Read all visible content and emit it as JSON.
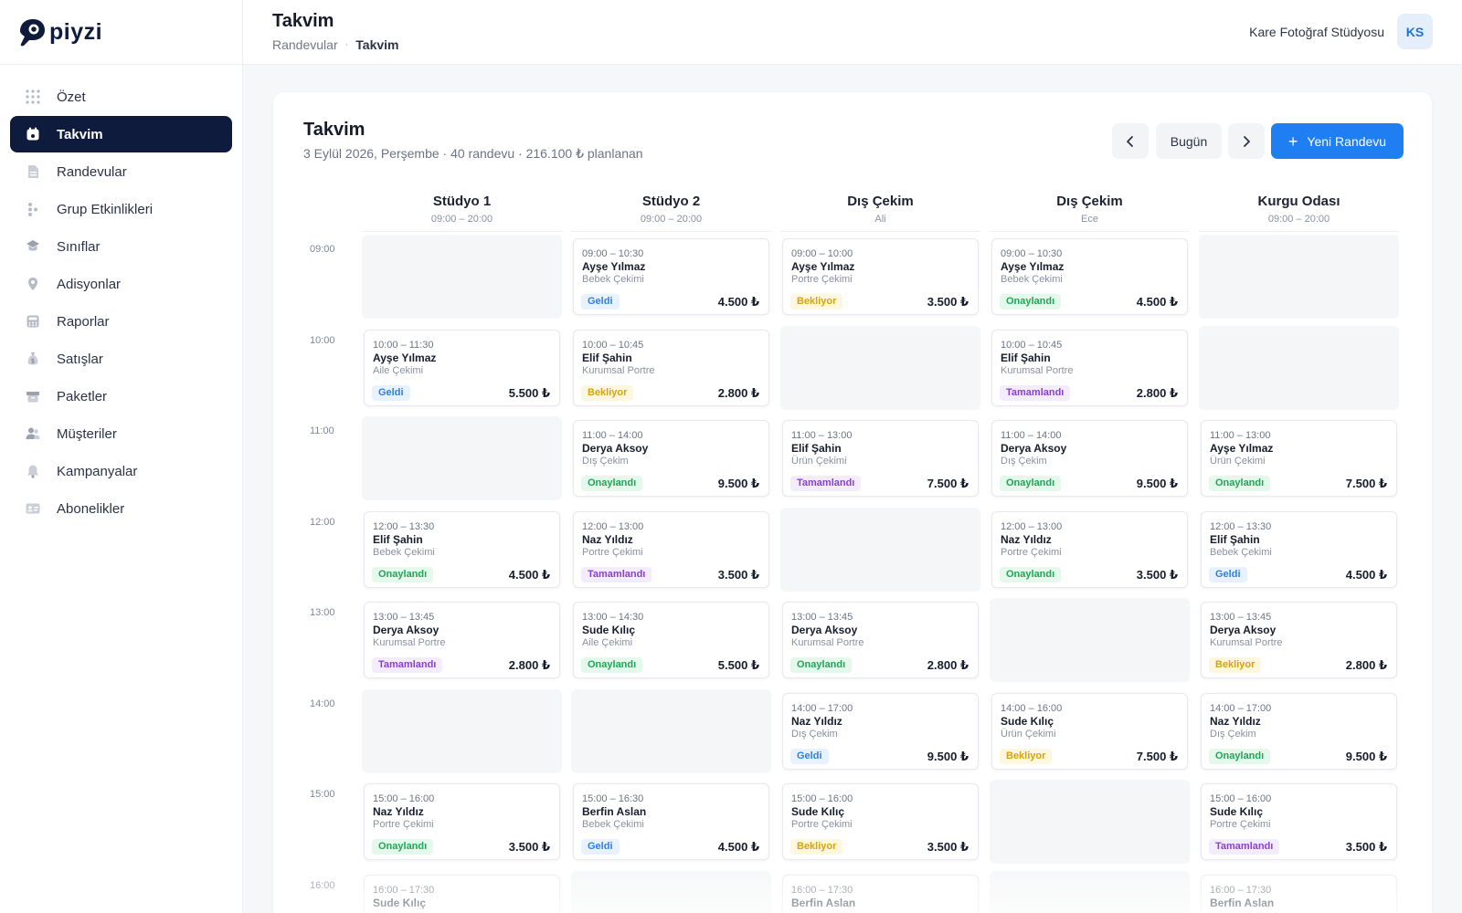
{
  "brand": {
    "name": "piyzi",
    "color": "#0f1b3d",
    "accent": "#1e7ef2"
  },
  "sidebar": {
    "items": [
      {
        "label": "Özet",
        "icon": "grid-icon",
        "active": false
      },
      {
        "label": "Takvim",
        "icon": "calendar-icon",
        "active": true
      },
      {
        "label": "Randevular",
        "icon": "document-icon",
        "active": false
      },
      {
        "label": "Grup Etkinlikleri",
        "icon": "group-icon",
        "active": false
      },
      {
        "label": "Sınıflar",
        "icon": "graduation-cap-icon",
        "active": false
      },
      {
        "label": "Adisyonlar",
        "icon": "location-pin-icon",
        "active": false
      },
      {
        "label": "Raporlar",
        "icon": "calculator-icon",
        "active": false
      },
      {
        "label": "Satışlar",
        "icon": "money-bag-icon",
        "active": false
      },
      {
        "label": "Paketler",
        "icon": "box-icon",
        "active": false
      },
      {
        "label": "Müşteriler",
        "icon": "users-icon",
        "active": false
      },
      {
        "label": "Kampanyalar",
        "icon": "bell-icon",
        "active": false
      },
      {
        "label": "Abonelikler",
        "icon": "id-card-icon",
        "active": false
      }
    ]
  },
  "header": {
    "title": "Takvim",
    "breadcrumb": [
      "Randevular",
      "Takvim"
    ],
    "breadcrumb_sep": "·",
    "studio": "Kare Fotoğraf Stüdyosu",
    "avatar": "KS"
  },
  "calendar": {
    "title": "Takvim",
    "subtitle": "3 Eylül 2026, Perşembe · 40 randevu · 216.100 ₺ planlanan",
    "today_label": "Bugün",
    "prev_icon": "chevron-left-icon",
    "next_icon": "chevron-right-icon",
    "new_label": "Yeni Randevu",
    "new_icon": "plus-icon",
    "columns": [
      {
        "name": "Stüdyo 1",
        "sub": "09:00 – 20:00"
      },
      {
        "name": "Stüdyo 2",
        "sub": "09:00 – 20:00"
      },
      {
        "name": "Dış Çekim",
        "sub": "Ali"
      },
      {
        "name": "Dış Çekim",
        "sub": "Ece"
      },
      {
        "name": "Kurgu Odası",
        "sub": "09:00 – 20:00"
      }
    ],
    "hours": [
      "09:00",
      "10:00",
      "11:00",
      "12:00",
      "13:00",
      "14:00",
      "15:00",
      "16:00"
    ],
    "status_colors": {
      "Geldi": "#2f7fe0",
      "Bekliyor": "#d6a30c",
      "Onaylandı": "#21a656",
      "Tamamlandı": "#8a3fd1"
    },
    "slots": [
      [
        null,
        {
          "time": "09:00 – 10:30",
          "name": "Ayşe Yılmaz",
          "service": "Bebek Çekimi",
          "status": "Geldi",
          "price": "4.500 ₺"
        },
        {
          "time": "09:00 – 10:00",
          "name": "Ayşe Yılmaz",
          "service": "Portre Çekimi",
          "status": "Bekliyor",
          "price": "3.500 ₺"
        },
        {
          "time": "09:00 – 10:30",
          "name": "Ayşe Yılmaz",
          "service": "Bebek Çekimi",
          "status": "Onaylandı",
          "price": "4.500 ₺"
        },
        null
      ],
      [
        {
          "time": "10:00 – 11:30",
          "name": "Ayşe Yılmaz",
          "service": "Aile Çekimi",
          "status": "Geldi",
          "price": "5.500 ₺"
        },
        {
          "time": "10:00 – 10:45",
          "name": "Elif Şahin",
          "service": "Kurumsal Portre",
          "status": "Bekliyor",
          "price": "2.800 ₺"
        },
        null,
        {
          "time": "10:00 – 10:45",
          "name": "Elif Şahin",
          "service": "Kurumsal Portre",
          "status": "Tamamlandı",
          "price": "2.800 ₺"
        },
        null
      ],
      [
        null,
        {
          "time": "11:00 – 14:00",
          "name": "Derya Aksoy",
          "service": "Dış Çekim",
          "status": "Onaylandı",
          "price": "9.500 ₺"
        },
        {
          "time": "11:00 – 13:00",
          "name": "Elif Şahin",
          "service": "Ürün Çekimi",
          "status": "Tamamlandı",
          "price": "7.500 ₺"
        },
        {
          "time": "11:00 – 14:00",
          "name": "Derya Aksoy",
          "service": "Dış Çekim",
          "status": "Onaylandı",
          "price": "9.500 ₺"
        },
        {
          "time": "11:00 – 13:00",
          "name": "Ayşe Yılmaz",
          "service": "Ürün Çekimi",
          "status": "Onaylandı",
          "price": "7.500 ₺"
        }
      ],
      [
        {
          "time": "12:00 – 13:30",
          "name": "Elif Şahin",
          "service": "Bebek Çekimi",
          "status": "Onaylandı",
          "price": "4.500 ₺"
        },
        {
          "time": "12:00 – 13:00",
          "name": "Naz Yıldız",
          "service": "Portre Çekimi",
          "status": "Tamamlandı",
          "price": "3.500 ₺"
        },
        null,
        {
          "time": "12:00 – 13:00",
          "name": "Naz Yıldız",
          "service": "Portre Çekimi",
          "status": "Onaylandı",
          "price": "3.500 ₺"
        },
        {
          "time": "12:00 – 13:30",
          "name": "Elif Şahin",
          "service": "Bebek Çekimi",
          "status": "Geldi",
          "price": "4.500 ₺"
        }
      ],
      [
        {
          "time": "13:00 – 13:45",
          "name": "Derya Aksoy",
          "service": "Kurumsal Portre",
          "status": "Tamamlandı",
          "price": "2.800 ₺"
        },
        {
          "time": "13:00 – 14:30",
          "name": "Sude Kılıç",
          "service": "Aile Çekimi",
          "status": "Onaylandı",
          "price": "5.500 ₺"
        },
        {
          "time": "13:00 – 13:45",
          "name": "Derya Aksoy",
          "service": "Kurumsal Portre",
          "status": "Onaylandı",
          "price": "2.800 ₺"
        },
        null,
        {
          "time": "13:00 – 13:45",
          "name": "Derya Aksoy",
          "service": "Kurumsal Portre",
          "status": "Bekliyor",
          "price": "2.800 ₺"
        }
      ],
      [
        null,
        null,
        {
          "time": "14:00 – 17:00",
          "name": "Naz Yıldız",
          "service": "Dış Çekim",
          "status": "Geldi",
          "price": "9.500 ₺"
        },
        {
          "time": "14:00 – 16:00",
          "name": "Sude Kılıç",
          "service": "Ürün Çekimi",
          "status": "Bekliyor",
          "price": "7.500 ₺"
        },
        {
          "time": "14:00 – 17:00",
          "name": "Naz Yıldız",
          "service": "Dış Çekim",
          "status": "Onaylandı",
          "price": "9.500 ₺"
        }
      ],
      [
        {
          "time": "15:00 – 16:00",
          "name": "Naz Yıldız",
          "service": "Portre Çekimi",
          "status": "Onaylandı",
          "price": "3.500 ₺"
        },
        {
          "time": "15:00 – 16:30",
          "name": "Berfin Aslan",
          "service": "Bebek Çekimi",
          "status": "Geldi",
          "price": "4.500 ₺"
        },
        {
          "time": "15:00 – 16:00",
          "name": "Sude Kılıç",
          "service": "Portre Çekimi",
          "status": "Bekliyor",
          "price": "3.500 ₺"
        },
        null,
        {
          "time": "15:00 – 16:00",
          "name": "Sude Kılıç",
          "service": "Portre Çekimi",
          "status": "Tamamlandı",
          "price": "3.500 ₺"
        }
      ],
      [
        {
          "time": "16:00 – 17:30",
          "name": "Sude Kılıç",
          "service": "",
          "status": "",
          "price": ""
        },
        null,
        {
          "time": "16:00 – 17:30",
          "name": "Berfin Aslan",
          "service": "",
          "status": "",
          "price": ""
        },
        null,
        {
          "time": "16:00 – 17:30",
          "name": "Berfin Aslan",
          "service": "",
          "status": "",
          "price": ""
        }
      ]
    ]
  }
}
